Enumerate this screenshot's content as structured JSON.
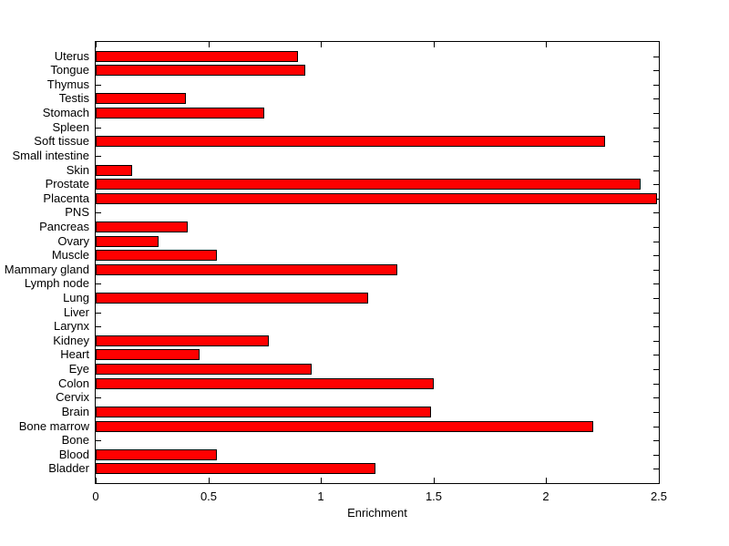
{
  "chart_data": {
    "type": "bar",
    "orientation": "horizontal",
    "title": "",
    "xlabel": "Enrichment",
    "ylabel": "",
    "categories": [
      "Uterus",
      "Tongue",
      "Thymus",
      "Testis",
      "Stomach",
      "Spleen",
      "Soft tissue",
      "Small intestine",
      "Skin",
      "Prostate",
      "Placenta",
      "PNS",
      "Pancreas",
      "Ovary",
      "Muscle",
      "Mammary gland",
      "Lymph node",
      "Lung",
      "Liver",
      "Larynx",
      "Kidney",
      "Heart",
      "Eye",
      "Colon",
      "Cervix",
      "Brain",
      "Bone marrow",
      "Bone",
      "Blood",
      "Bladder"
    ],
    "values": [
      0.9,
      0.93,
      0,
      0.4,
      0.75,
      0,
      2.26,
      0,
      0.16,
      2.42,
      2.49,
      0,
      0.41,
      0.28,
      0.54,
      1.34,
      0,
      1.21,
      0,
      0,
      0.77,
      0.46,
      0.96,
      1.5,
      0,
      1.49,
      2.21,
      0,
      0.54,
      1.24
    ],
    "xlim": [
      0,
      2.5
    ],
    "xticks": [
      0,
      0.5,
      1,
      1.5,
      2,
      2.5
    ],
    "xtick_labels": [
      "0",
      "0.5",
      "1",
      "1.5",
      "2",
      "2.5"
    ],
    "grid": false,
    "legend": false,
    "bar_color": "#FF0000",
    "bar_edge_color": "#000000",
    "axis_color": "#000000",
    "background_color": "#FFFFFF"
  }
}
